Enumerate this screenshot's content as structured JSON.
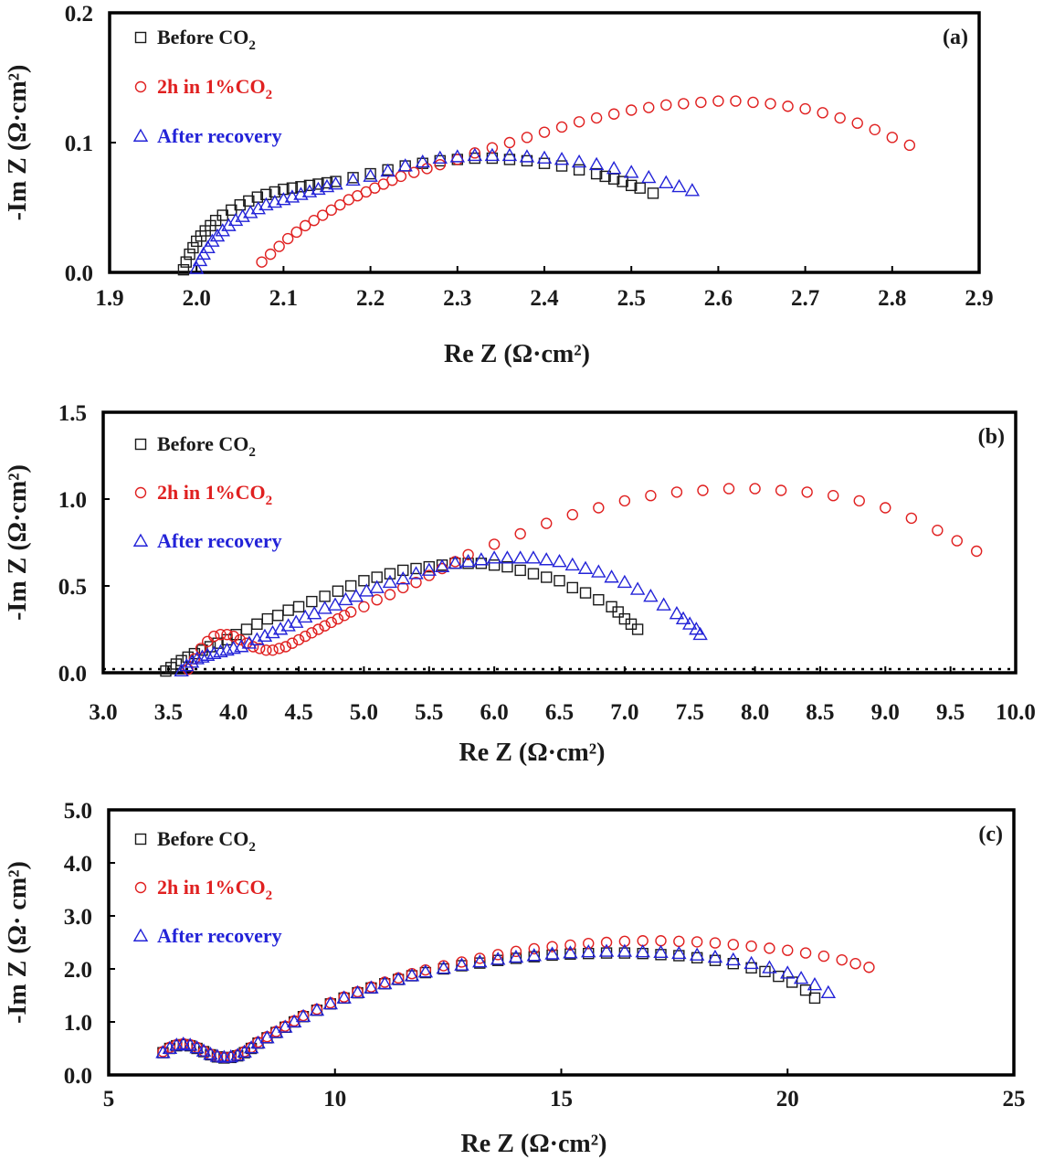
{
  "chart_data": [
    {
      "type": "scatter",
      "panel_label": "(a)",
      "xlabel": "Re Z (Ω·cm²)",
      "ylabel": "-Im Z (Ω·cm²)",
      "xlim": [
        1.9,
        2.9
      ],
      "ylim": [
        0,
        0.2
      ],
      "x_ticks": [
        "1.9",
        "2.0",
        "2.1",
        "2.2",
        "2.3",
        "2.4",
        "2.5",
        "2.6",
        "2.7",
        "2.8",
        "2.9"
      ],
      "y_ticks": [
        "0.0",
        "0.1",
        "0.2"
      ],
      "legend_position": "top-left",
      "series": [
        {
          "name": "Before CO2",
          "label_main": "Before CO",
          "label_sub": "2",
          "marker": "square",
          "color": "#1a1a1a",
          "x": [
            1.985,
            1.988,
            1.992,
            1.996,
            2.0,
            2.005,
            2.01,
            2.016,
            2.022,
            2.03,
            2.04,
            2.05,
            2.06,
            2.07,
            2.08,
            2.09,
            2.1,
            2.11,
            2.12,
            2.13,
            2.14,
            2.15,
            2.16,
            2.18,
            2.2,
            2.22,
            2.24,
            2.26,
            2.28,
            2.3,
            2.32,
            2.34,
            2.36,
            2.38,
            2.4,
            2.42,
            2.44,
            2.46,
            2.47,
            2.48,
            2.49,
            2.5,
            2.51,
            2.525
          ],
          "y": [
            0.002,
            0.008,
            0.014,
            0.019,
            0.024,
            0.028,
            0.032,
            0.036,
            0.04,
            0.044,
            0.048,
            0.052,
            0.055,
            0.058,
            0.06,
            0.062,
            0.064,
            0.065,
            0.066,
            0.067,
            0.068,
            0.069,
            0.07,
            0.073,
            0.076,
            0.079,
            0.082,
            0.084,
            0.086,
            0.087,
            0.088,
            0.088,
            0.087,
            0.086,
            0.084,
            0.082,
            0.079,
            0.076,
            0.074,
            0.072,
            0.07,
            0.067,
            0.065,
            0.061
          ]
        },
        {
          "name": "2h in 1%CO2",
          "label_main": "2h in 1%CO",
          "label_sub": "2",
          "marker": "circle",
          "color": "#e02020",
          "x": [
            2.075,
            2.085,
            2.095,
            2.105,
            2.115,
            2.125,
            2.135,
            2.145,
            2.155,
            2.165,
            2.175,
            2.185,
            2.195,
            2.205,
            2.215,
            2.225,
            2.235,
            2.25,
            2.265,
            2.28,
            2.3,
            2.32,
            2.34,
            2.36,
            2.38,
            2.4,
            2.42,
            2.44,
            2.46,
            2.48,
            2.5,
            2.52,
            2.54,
            2.56,
            2.58,
            2.6,
            2.62,
            2.64,
            2.66,
            2.68,
            2.7,
            2.72,
            2.74,
            2.76,
            2.78,
            2.8,
            2.82
          ],
          "y": [
            0.008,
            0.014,
            0.02,
            0.026,
            0.031,
            0.036,
            0.04,
            0.044,
            0.048,
            0.052,
            0.056,
            0.059,
            0.062,
            0.065,
            0.068,
            0.071,
            0.074,
            0.077,
            0.08,
            0.083,
            0.087,
            0.092,
            0.096,
            0.1,
            0.104,
            0.108,
            0.112,
            0.116,
            0.119,
            0.122,
            0.125,
            0.127,
            0.129,
            0.13,
            0.131,
            0.132,
            0.132,
            0.131,
            0.13,
            0.128,
            0.126,
            0.123,
            0.119,
            0.115,
            0.11,
            0.104,
            0.098
          ]
        },
        {
          "name": "After recovery",
          "label_main": "After recovery",
          "label_sub": "",
          "marker": "triangle",
          "color": "#2323d8",
          "x": [
            2.0,
            2.004,
            2.008,
            2.013,
            2.018,
            2.024,
            2.03,
            2.037,
            2.045,
            2.053,
            2.062,
            2.071,
            2.08,
            2.09,
            2.1,
            2.11,
            2.12,
            2.13,
            2.14,
            2.15,
            2.16,
            2.18,
            2.2,
            2.22,
            2.24,
            2.26,
            2.28,
            2.3,
            2.32,
            2.34,
            2.36,
            2.38,
            2.4,
            2.42,
            2.44,
            2.46,
            2.48,
            2.5,
            2.52,
            2.54,
            2.555,
            2.57
          ],
          "y": [
            0.003,
            0.009,
            0.014,
            0.019,
            0.024,
            0.028,
            0.032,
            0.036,
            0.04,
            0.043,
            0.046,
            0.049,
            0.052,
            0.054,
            0.056,
            0.058,
            0.06,
            0.062,
            0.064,
            0.066,
            0.068,
            0.071,
            0.074,
            0.078,
            0.082,
            0.085,
            0.088,
            0.089,
            0.09,
            0.09,
            0.09,
            0.089,
            0.088,
            0.087,
            0.085,
            0.083,
            0.08,
            0.077,
            0.073,
            0.069,
            0.066,
            0.063
          ]
        }
      ]
    },
    {
      "type": "scatter",
      "panel_label": "(b)",
      "xlabel": "Re Z (Ω·cm²)",
      "ylabel": "-Im Z (Ω·cm²)",
      "xlim": [
        3.0,
        10.0
      ],
      "ylim": [
        0,
        1.5
      ],
      "x_ticks": [
        "3.0",
        "3.5",
        "4.0",
        "4.5",
        "5.0",
        "5.5",
        "6.0",
        "6.5",
        "7.0",
        "7.5",
        "8.0",
        "8.5",
        "9.0",
        "9.5",
        "10.0"
      ],
      "y_ticks": [
        "0.0",
        "0.5",
        "1.0",
        "1.5"
      ],
      "legend_position": "top-left",
      "series": [
        {
          "name": "Before CO2",
          "label_main": "Before CO",
          "label_sub": "2",
          "marker": "square",
          "color": "#1a1a1a",
          "x": [
            3.48,
            3.52,
            3.56,
            3.6,
            3.65,
            3.7,
            3.76,
            3.82,
            3.88,
            3.95,
            4.02,
            4.1,
            4.18,
            4.26,
            4.34,
            4.42,
            4.5,
            4.6,
            4.7,
            4.8,
            4.9,
            5.0,
            5.1,
            5.2,
            5.3,
            5.4,
            5.5,
            5.6,
            5.7,
            5.8,
            5.9,
            6.0,
            6.1,
            6.2,
            6.3,
            6.4,
            6.5,
            6.6,
            6.7,
            6.8,
            6.9,
            6.95,
            7.0,
            7.05,
            7.1
          ],
          "y": [
            0.01,
            0.03,
            0.05,
            0.07,
            0.09,
            0.11,
            0.13,
            0.15,
            0.17,
            0.19,
            0.22,
            0.25,
            0.28,
            0.31,
            0.33,
            0.36,
            0.38,
            0.41,
            0.44,
            0.47,
            0.5,
            0.53,
            0.55,
            0.57,
            0.59,
            0.6,
            0.61,
            0.62,
            0.63,
            0.63,
            0.63,
            0.62,
            0.61,
            0.59,
            0.57,
            0.55,
            0.53,
            0.49,
            0.46,
            0.42,
            0.38,
            0.35,
            0.31,
            0.28,
            0.25
          ]
        },
        {
          "name": "2h in 1%CO2",
          "label_main": "2h in 1%CO",
          "label_sub": "2",
          "marker": "circle",
          "color": "#e02020",
          "x": [
            3.65,
            3.7,
            3.75,
            3.8,
            3.85,
            3.9,
            3.95,
            4.0,
            4.05,
            4.1,
            4.15,
            4.2,
            4.25,
            4.3,
            4.35,
            4.4,
            4.45,
            4.5,
            4.55,
            4.6,
            4.65,
            4.7,
            4.75,
            4.8,
            4.85,
            4.9,
            5.0,
            5.1,
            5.2,
            5.3,
            5.4,
            5.5,
            5.6,
            5.7,
            5.8,
            6.0,
            6.2,
            6.4,
            6.6,
            6.8,
            7.0,
            7.2,
            7.4,
            7.6,
            7.8,
            8.0,
            8.2,
            8.4,
            8.6,
            8.8,
            9.0,
            9.2,
            9.4,
            9.55,
            9.7
          ],
          "y": [
            0.02,
            0.08,
            0.14,
            0.18,
            0.21,
            0.22,
            0.22,
            0.21,
            0.19,
            0.17,
            0.15,
            0.14,
            0.13,
            0.13,
            0.14,
            0.15,
            0.17,
            0.19,
            0.21,
            0.23,
            0.25,
            0.27,
            0.29,
            0.31,
            0.33,
            0.35,
            0.38,
            0.42,
            0.45,
            0.49,
            0.52,
            0.56,
            0.6,
            0.64,
            0.68,
            0.74,
            0.8,
            0.86,
            0.91,
            0.95,
            0.99,
            1.02,
            1.04,
            1.05,
            1.06,
            1.06,
            1.05,
            1.04,
            1.02,
            0.99,
            0.95,
            0.89,
            0.82,
            0.76,
            0.7
          ]
        },
        {
          "name": "After recovery",
          "label_main": "After recovery",
          "label_sub": "",
          "marker": "triangle",
          "color": "#2323d8",
          "x": [
            3.6,
            3.64,
            3.68,
            3.72,
            3.76,
            3.8,
            3.85,
            3.9,
            3.95,
            4.0,
            4.06,
            4.12,
            4.18,
            4.24,
            4.3,
            4.36,
            4.42,
            4.48,
            4.55,
            4.62,
            4.7,
            4.78,
            4.86,
            4.94,
            5.02,
            5.1,
            5.2,
            5.3,
            5.4,
            5.5,
            5.6,
            5.7,
            5.8,
            5.9,
            6.0,
            6.1,
            6.2,
            6.3,
            6.4,
            6.5,
            6.6,
            6.7,
            6.8,
            6.9,
            7.0,
            7.1,
            7.2,
            7.3,
            7.4,
            7.45,
            7.5,
            7.55,
            7.58
          ],
          "y": [
            0.01,
            0.04,
            0.06,
            0.08,
            0.09,
            0.1,
            0.11,
            0.12,
            0.13,
            0.14,
            0.15,
            0.17,
            0.19,
            0.21,
            0.23,
            0.25,
            0.27,
            0.29,
            0.32,
            0.34,
            0.37,
            0.39,
            0.42,
            0.44,
            0.47,
            0.49,
            0.52,
            0.54,
            0.57,
            0.59,
            0.61,
            0.63,
            0.64,
            0.65,
            0.66,
            0.66,
            0.66,
            0.66,
            0.65,
            0.64,
            0.62,
            0.6,
            0.58,
            0.55,
            0.52,
            0.48,
            0.44,
            0.39,
            0.34,
            0.31,
            0.28,
            0.25,
            0.22
          ]
        }
      ]
    },
    {
      "type": "scatter",
      "panel_label": "(c)",
      "xlabel": "Re Z (Ω·cm²)",
      "ylabel": "-Im Z (Ω· cm²)",
      "xlim": [
        5,
        25
      ],
      "ylim": [
        0,
        5.0
      ],
      "x_ticks": [
        "5",
        "10",
        "15",
        "20",
        "25"
      ],
      "y_ticks": [
        "0.0",
        "1.0",
        "2.0",
        "3.0",
        "4.0",
        "5.0"
      ],
      "legend_position": "top-left",
      "series": [
        {
          "name": "Before CO2",
          "label_main": "Before CO",
          "label_sub": "2",
          "marker": "square",
          "color": "#1a1a1a",
          "x": [
            6.2,
            6.35,
            6.5,
            6.65,
            6.8,
            6.95,
            7.1,
            7.25,
            7.4,
            7.55,
            7.7,
            7.85,
            8.0,
            8.15,
            8.3,
            8.5,
            8.7,
            8.9,
            9.1,
            9.3,
            9.6,
            9.9,
            10.2,
            10.5,
            10.8,
            11.1,
            11.4,
            11.7,
            12.0,
            12.4,
            12.8,
            13.2,
            13.6,
            14.0,
            14.4,
            14.8,
            15.2,
            15.6,
            16.0,
            16.4,
            16.8,
            17.2,
            17.6,
            18.0,
            18.4,
            18.8,
            19.2,
            19.5,
            19.8,
            20.1,
            20.4,
            20.6
          ],
          "y": [
            0.42,
            0.5,
            0.55,
            0.57,
            0.55,
            0.5,
            0.44,
            0.38,
            0.34,
            0.32,
            0.33,
            0.36,
            0.42,
            0.5,
            0.6,
            0.7,
            0.8,
            0.9,
            1.0,
            1.1,
            1.22,
            1.34,
            1.45,
            1.55,
            1.64,
            1.72,
            1.8,
            1.87,
            1.93,
            2.0,
            2.06,
            2.11,
            2.16,
            2.2,
            2.23,
            2.26,
            2.28,
            2.29,
            2.3,
            2.3,
            2.29,
            2.27,
            2.25,
            2.21,
            2.16,
            2.1,
            2.02,
            1.95,
            1.86,
            1.75,
            1.6,
            1.45
          ]
        },
        {
          "name": "2h in 1%CO2",
          "label_main": "2h in 1%CO",
          "label_sub": "2",
          "marker": "circle",
          "color": "#e02020",
          "x": [
            6.2,
            6.35,
            6.5,
            6.65,
            6.8,
            6.95,
            7.1,
            7.25,
            7.4,
            7.55,
            7.7,
            7.85,
            8.0,
            8.15,
            8.3,
            8.5,
            8.7,
            8.9,
            9.1,
            9.3,
            9.6,
            9.9,
            10.2,
            10.5,
            10.8,
            11.1,
            11.4,
            11.7,
            12.0,
            12.4,
            12.8,
            13.2,
            13.6,
            14.0,
            14.4,
            14.8,
            15.2,
            15.6,
            16.0,
            16.4,
            16.8,
            17.2,
            17.6,
            18.0,
            18.4,
            18.8,
            19.2,
            19.6,
            20.0,
            20.4,
            20.8,
            21.2,
            21.5,
            21.8
          ],
          "y": [
            0.44,
            0.52,
            0.57,
            0.59,
            0.57,
            0.52,
            0.45,
            0.39,
            0.35,
            0.33,
            0.34,
            0.38,
            0.44,
            0.52,
            0.62,
            0.72,
            0.82,
            0.92,
            1.02,
            1.12,
            1.24,
            1.36,
            1.47,
            1.57,
            1.66,
            1.75,
            1.83,
            1.91,
            1.98,
            2.06,
            2.13,
            2.2,
            2.27,
            2.33,
            2.38,
            2.42,
            2.45,
            2.48,
            2.5,
            2.52,
            2.53,
            2.53,
            2.52,
            2.51,
            2.49,
            2.46,
            2.43,
            2.39,
            2.35,
            2.3,
            2.24,
            2.17,
            2.1,
            2.03
          ]
        },
        {
          "name": "After recovery",
          "label_main": "After recovery",
          "label_sub": "",
          "marker": "triangle",
          "color": "#2323d8",
          "x": [
            6.2,
            6.35,
            6.5,
            6.65,
            6.8,
            6.95,
            7.1,
            7.25,
            7.4,
            7.55,
            7.7,
            7.85,
            8.0,
            8.15,
            8.3,
            8.5,
            8.7,
            8.9,
            9.1,
            9.3,
            9.6,
            9.9,
            10.2,
            10.5,
            10.8,
            11.1,
            11.4,
            11.7,
            12.0,
            12.4,
            12.8,
            13.2,
            13.6,
            14.0,
            14.4,
            14.8,
            15.2,
            15.6,
            16.0,
            16.4,
            16.8,
            17.2,
            17.6,
            18.0,
            18.4,
            18.8,
            19.2,
            19.6,
            20.0,
            20.3,
            20.6,
            20.9
          ],
          "y": [
            0.42,
            0.5,
            0.56,
            0.58,
            0.56,
            0.51,
            0.45,
            0.39,
            0.35,
            0.33,
            0.34,
            0.37,
            0.43,
            0.51,
            0.6,
            0.7,
            0.8,
            0.9,
            1.0,
            1.1,
            1.22,
            1.34,
            1.45,
            1.55,
            1.64,
            1.72,
            1.8,
            1.87,
            1.94,
            2.01,
            2.07,
            2.13,
            2.18,
            2.22,
            2.25,
            2.28,
            2.3,
            2.32,
            2.33,
            2.33,
            2.32,
            2.31,
            2.29,
            2.26,
            2.22,
            2.17,
            2.1,
            2.02,
            1.92,
            1.82,
            1.7,
            1.55
          ]
        }
      ]
    }
  ]
}
